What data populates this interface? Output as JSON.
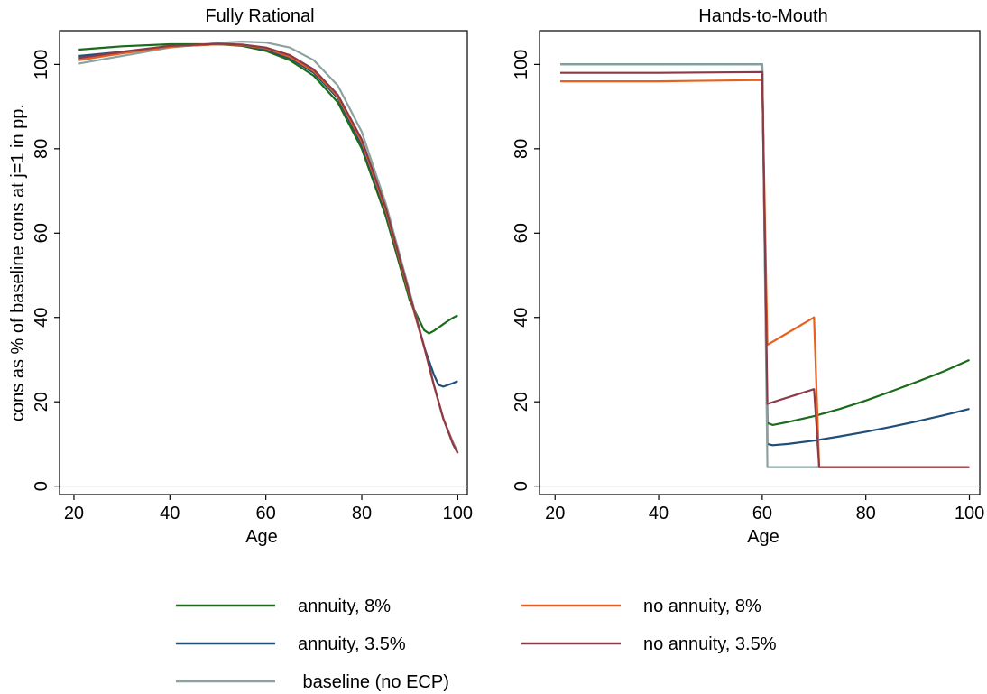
{
  "chart_data": [
    {
      "type": "line",
      "title": "Fully Rational",
      "xlabel": "Age",
      "ylabel": "cons as % of baseline cons at j=1 in pp.",
      "xlim": [
        17,
        102
      ],
      "ylim": [
        -2,
        108
      ],
      "xticks": [
        20,
        40,
        60,
        80,
        100
      ],
      "yticks": [
        0,
        20,
        40,
        60,
        80,
        100
      ],
      "reference_line_y": 0,
      "grid": false,
      "series": [
        {
          "name": "annuity, 8%",
          "color": "#1a6b1a",
          "x": [
            21,
            30,
            40,
            50,
            55,
            60,
            65,
            70,
            75,
            80,
            85,
            90,
            93,
            94,
            95,
            96,
            97,
            98,
            99,
            100
          ],
          "y": [
            103.5,
            104.3,
            104.8,
            104.8,
            104.4,
            103.2,
            101.0,
            97.3,
            91.0,
            80.0,
            64.0,
            44.0,
            37.0,
            36.2,
            36.8,
            37.6,
            38.4,
            39.2,
            39.9,
            40.5
          ]
        },
        {
          "name": "annuity, 3.5%",
          "color": "#1f4e79",
          "x": [
            21,
            30,
            40,
            50,
            55,
            60,
            65,
            70,
            75,
            80,
            85,
            90,
            93,
            95,
            96,
            97,
            98,
            99,
            100
          ],
          "y": [
            102.0,
            103.0,
            104.2,
            104.8,
            104.6,
            103.6,
            101.5,
            98.0,
            92.0,
            81.0,
            65.0,
            45.0,
            33.0,
            26.5,
            24.0,
            23.6,
            24.0,
            24.4,
            24.9
          ]
        },
        {
          "name": "baseline (no ECP)",
          "color": "#8ba3a0",
          "x": [
            21,
            30,
            40,
            50,
            55,
            60,
            65,
            70,
            75,
            80,
            85,
            90,
            93,
            95,
            97,
            99,
            100
          ],
          "y": [
            100.2,
            102.0,
            104.0,
            105.1,
            105.4,
            105.2,
            104.0,
            101.0,
            95.0,
            84.0,
            67.0,
            46.0,
            33.0,
            24.0,
            16.0,
            10.5,
            8.0
          ]
        },
        {
          "name": "no annuity, 8%",
          "color": "#e8601c",
          "x": [
            21,
            30,
            40,
            50,
            55,
            60,
            65,
            70,
            75,
            80,
            85,
            90,
            93,
            95,
            97,
            99,
            100
          ],
          "y": [
            101.0,
            102.6,
            104.2,
            104.8,
            104.6,
            103.8,
            101.8,
            98.4,
            92.4,
            81.6,
            65.4,
            45.0,
            33.0,
            24.0,
            16.0,
            10.0,
            7.8
          ]
        },
        {
          "name": "no annuity, 3.5%",
          "color": "#8b3a4a",
          "x": [
            21,
            30,
            40,
            50,
            55,
            60,
            65,
            70,
            75,
            80,
            85,
            90,
            93,
            95,
            97,
            99,
            100
          ],
          "y": [
            101.5,
            103.0,
            104.4,
            104.9,
            104.7,
            104.0,
            102.2,
            98.8,
            92.8,
            82.2,
            66.0,
            45.4,
            33.2,
            24.1,
            16.0,
            10.0,
            7.8
          ]
        }
      ]
    },
    {
      "type": "line",
      "title": "Hands-to-Mouth",
      "xlabel": "Age",
      "ylabel": "",
      "xlim": [
        17,
        102
      ],
      "ylim": [
        -2,
        108
      ],
      "xticks": [
        20,
        40,
        60,
        80,
        100
      ],
      "yticks": [
        0,
        20,
        40,
        60,
        80,
        100
      ],
      "reference_line_y": 0,
      "grid": false,
      "series": [
        {
          "name": "annuity, 8%",
          "color": "#1a6b1a",
          "x": [
            21,
            40,
            60,
            61,
            62,
            65,
            70,
            75,
            80,
            85,
            90,
            95,
            100
          ],
          "y": [
            100,
            100,
            100,
            15.0,
            14.5,
            15.2,
            16.6,
            18.3,
            20.3,
            22.5,
            24.8,
            27.2,
            29.9
          ]
        },
        {
          "name": "annuity, 3.5%",
          "color": "#1f4e79",
          "x": [
            21,
            40,
            60,
            61,
            62,
            65,
            70,
            75,
            80,
            85,
            90,
            95,
            100
          ],
          "y": [
            100,
            100,
            100,
            10.0,
            9.7,
            10.0,
            10.8,
            11.8,
            12.9,
            14.1,
            15.4,
            16.8,
            18.3
          ]
        },
        {
          "name": "baseline (no ECP)",
          "color": "#8ba3a0",
          "x": [
            21,
            60,
            61,
            100
          ],
          "y": [
            100,
            100,
            4.5,
            4.5
          ]
        },
        {
          "name": "no annuity, 8%",
          "color": "#e8601c",
          "x": [
            21,
            40,
            60,
            61,
            70,
            71,
            100
          ],
          "y": [
            96,
            96,
            96.3,
            33.5,
            40.0,
            4.5,
            4.5
          ]
        },
        {
          "name": "no annuity, 3.5%",
          "color": "#8b3a4a",
          "x": [
            21,
            40,
            60,
            61,
            70,
            71,
            100
          ],
          "y": [
            98,
            98,
            98.2,
            19.5,
            23.0,
            4.5,
            4.5
          ]
        }
      ]
    }
  ],
  "legend": {
    "items": [
      {
        "label": "annuity, 8%",
        "color": "#1a6b1a"
      },
      {
        "label": "no annuity, 8%",
        "color": "#e8601c"
      },
      {
        "label": "annuity, 3.5%",
        "color": "#1f4e79"
      },
      {
        "label": "no annuity, 3.5%",
        "color": "#8b3a4a"
      },
      {
        "label": " baseline (no ECP)",
        "color": "#8ba3a0"
      }
    ]
  }
}
